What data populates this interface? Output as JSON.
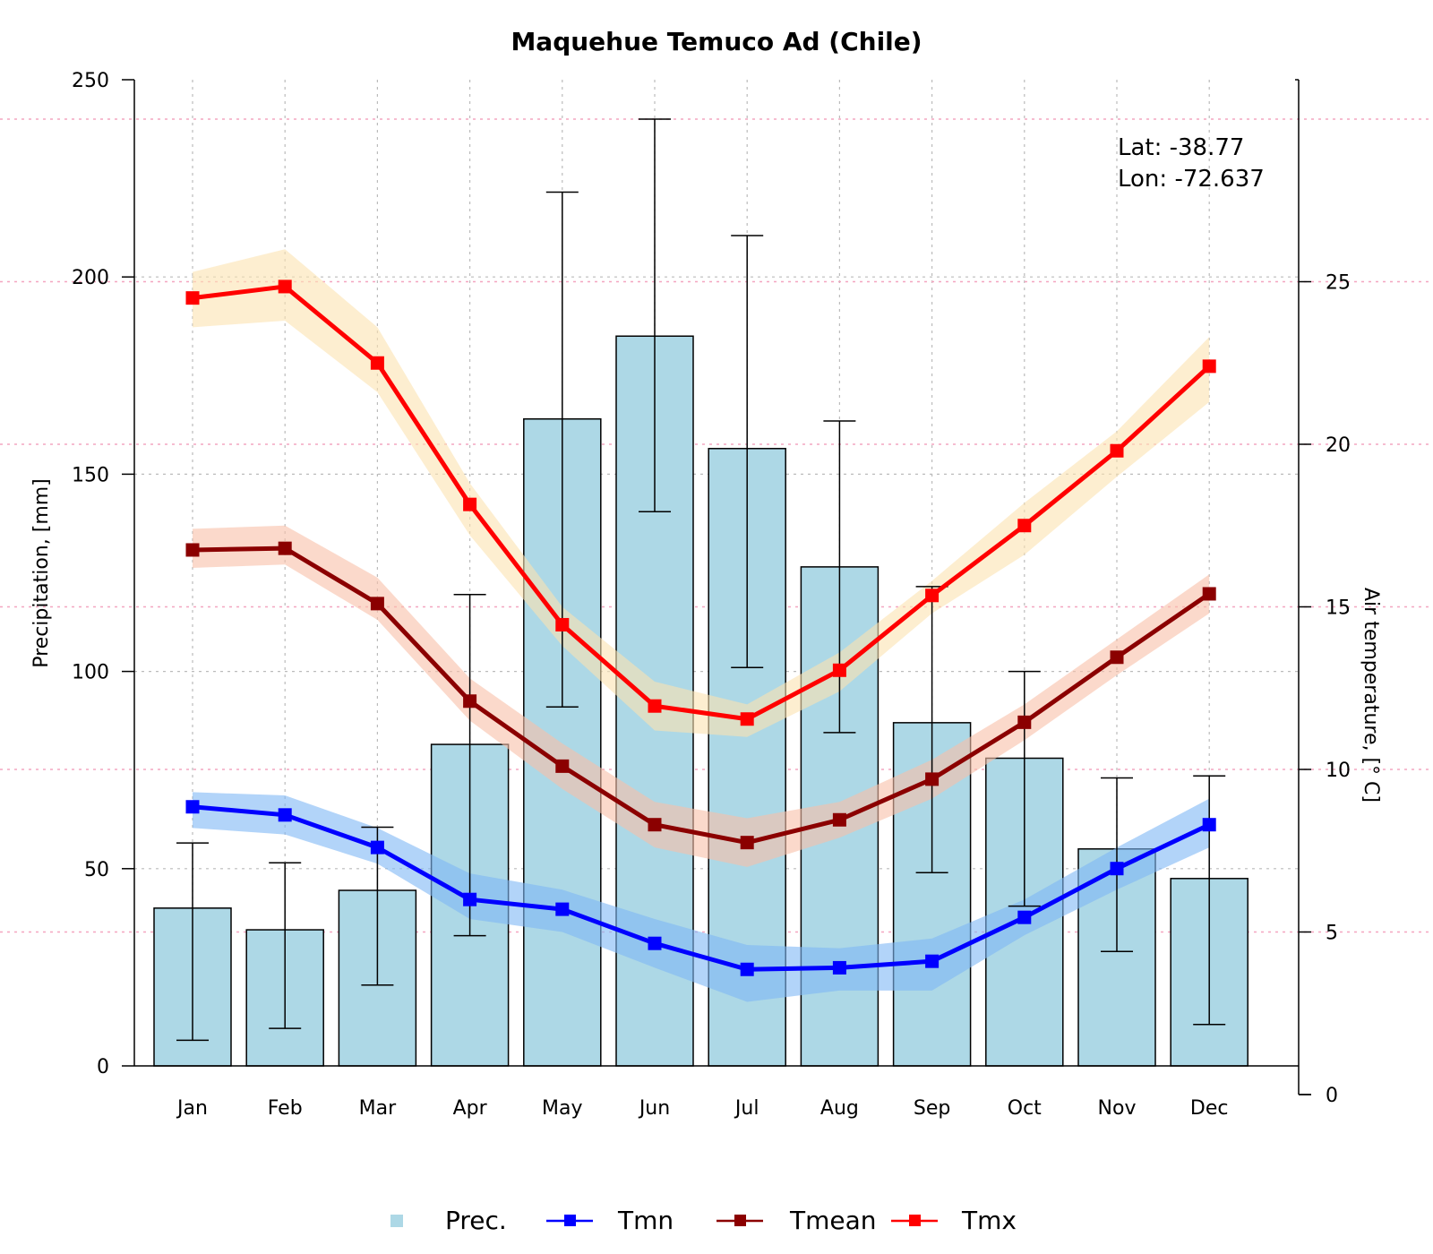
{
  "chart_data": {
    "type": "bar",
    "title": "Maquehue Temuco Ad (Chile)",
    "categories": [
      "Jan",
      "Feb",
      "Mar",
      "Apr",
      "May",
      "Jun",
      "Jul",
      "Aug",
      "Sep",
      "Oct",
      "Nov",
      "Dec"
    ],
    "coordinates": {
      "lat": "Lat: -38.77",
      "lon": "Lon: -72.637"
    },
    "left_axis": {
      "label": "Precipitation, [mm]",
      "range": [
        0,
        250
      ],
      "ticks": [
        0,
        50,
        100,
        150,
        200,
        250
      ]
    },
    "right_axis": {
      "label": "Air temperature, [° C]",
      "range": [
        0,
        30
      ],
      "ticks": [
        0,
        5,
        10,
        15,
        20,
        25
      ]
    },
    "grid": "dotted, on",
    "legend_placement": "bottom",
    "series": [
      {
        "name": "Prec.",
        "kind": "bar",
        "axis": "left",
        "color": "#add8e6",
        "values": [
          40,
          34.5,
          44.5,
          81.5,
          164,
          185,
          156.5,
          126.5,
          87,
          78,
          55,
          47.5
        ],
        "err_low": [
          6.5,
          9.5,
          20.5,
          33,
          91,
          140.5,
          101,
          84.5,
          49,
          40.5,
          29,
          10.5
        ],
        "err_high": [
          56.5,
          51.5,
          60.5,
          119.5,
          221.5,
          240,
          210.5,
          163.5,
          121.5,
          100,
          73,
          73.5
        ]
      },
      {
        "name": "Tmn",
        "kind": "line",
        "axis": "right",
        "color": "#0000ff",
        "band_color": "#7fb8f5",
        "values": [
          8.85,
          8.6,
          7.6,
          6.0,
          5.7,
          4.65,
          3.85,
          3.9,
          4.1,
          5.45,
          6.95,
          8.3
        ],
        "band_low": [
          8.2,
          8.0,
          7.1,
          5.4,
          5.0,
          3.9,
          2.85,
          3.2,
          3.2,
          4.9,
          6.3,
          7.6
        ],
        "band_high": [
          9.3,
          9.2,
          8.2,
          6.8,
          6.3,
          5.4,
          4.6,
          4.5,
          4.8,
          6.0,
          7.6,
          9.1
        ]
      },
      {
        "name": "Tmean",
        "kind": "line",
        "axis": "right",
        "color": "#8b0000",
        "band_color": "#f8bfa8",
        "values": [
          16.75,
          16.8,
          15.1,
          12.1,
          10.1,
          8.3,
          7.75,
          8.45,
          9.7,
          11.45,
          13.45,
          15.4
        ],
        "band_low": [
          16.2,
          16.3,
          14.6,
          11.5,
          9.4,
          7.6,
          7.0,
          7.9,
          9.1,
          10.9,
          12.9,
          14.8
        ],
        "band_high": [
          17.4,
          17.5,
          15.9,
          12.8,
          10.8,
          9.0,
          8.5,
          9.0,
          10.3,
          12.0,
          14.0,
          16.0
        ]
      },
      {
        "name": "Tmx",
        "kind": "line",
        "axis": "right",
        "color": "#ff0000",
        "band_color": "#fbe3b0",
        "values": [
          24.5,
          24.85,
          22.5,
          18.15,
          14.45,
          11.95,
          11.55,
          13.05,
          15.35,
          17.5,
          19.8,
          22.4
        ],
        "band_low": [
          23.6,
          23.8,
          21.6,
          17.2,
          13.8,
          11.2,
          11.0,
          12.4,
          14.8,
          16.6,
          19.0,
          21.3
        ],
        "band_high": [
          25.3,
          26.0,
          23.6,
          18.8,
          15.0,
          12.7,
          12.0,
          13.6,
          15.8,
          18.2,
          20.4,
          23.3
        ]
      }
    ]
  }
}
